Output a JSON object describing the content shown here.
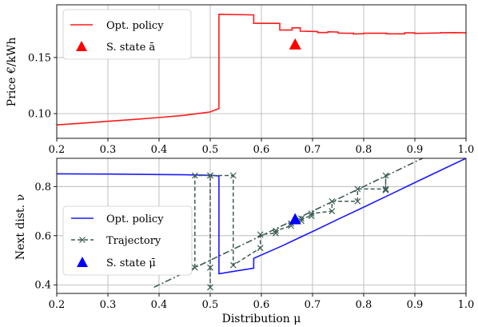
{
  "chart_data": [
    {
      "type": "line",
      "ylabel": "Price €/kWh",
      "xlim": [
        0.2,
        1.0
      ],
      "ylim": [
        0.078,
        0.197
      ],
      "xticks": [
        "0.2",
        "0.3",
        "0.4",
        "0.5",
        "0.6",
        "0.7",
        "0.8",
        "0.9",
        "1.0"
      ],
      "yticks": [
        "0.10",
        "0.15"
      ],
      "grid": true,
      "legend": {
        "placement": "top-left",
        "entries": [
          "Opt. policy",
          "S. state ā"
        ]
      },
      "colors": {
        "policy": "#ff1a1a",
        "steady": "#ff0000"
      },
      "series": [
        {
          "name": "Opt. policy",
          "x": [
            0.2,
            0.25,
            0.3,
            0.35,
            0.4,
            0.45,
            0.5,
            0.517,
            0.517,
            0.585,
            0.585,
            0.636,
            0.636,
            0.66,
            0.66,
            0.676,
            0.676,
            0.71,
            0.71,
            0.73,
            0.73,
            0.75,
            0.75,
            0.78,
            0.78,
            0.8,
            0.8,
            0.845,
            0.845,
            0.88,
            0.88,
            0.9,
            0.9,
            0.95,
            0.95,
            0.98,
            1.0
          ],
          "y": [
            0.09,
            0.0915,
            0.0932,
            0.0948,
            0.0965,
            0.0985,
            0.1015,
            0.1045,
            0.1885,
            0.188,
            0.1805,
            0.1805,
            0.1745,
            0.1745,
            0.1765,
            0.1765,
            0.1735,
            0.1732,
            0.1723,
            0.1723,
            0.173,
            0.1727,
            0.1718,
            0.1716,
            0.171,
            0.1713,
            0.1716,
            0.1716,
            0.1711,
            0.1711,
            0.172,
            0.172,
            0.1715,
            0.1719,
            0.1721,
            0.1722,
            0.172
          ]
        },
        {
          "name": "S. state ā",
          "x": [
            0.666
          ],
          "y": [
            0.1615
          ]
        }
      ]
    },
    {
      "type": "line",
      "xlabel": "Distribution μ",
      "ylabel": "Next dist. ν",
      "xlim": [
        0.2,
        1.0
      ],
      "ylim": [
        0.365,
        0.915
      ],
      "xticks": [
        "0.2",
        "0.3",
        "0.4",
        "0.5",
        "0.6",
        "0.7",
        "0.8",
        "0.9",
        "1.0"
      ],
      "yticks": [
        "0.4",
        "0.6",
        "0.8"
      ],
      "grid": true,
      "legend": {
        "placement": "bottom-left",
        "entries": [
          "Opt. policy",
          "Trajectory",
          "S. state μ̄"
        ]
      },
      "colors": {
        "policy": "#1a1aff",
        "trajectory": "#3d5c55",
        "diagonal": "#3d5c55",
        "steady": "#0000ff"
      },
      "series": [
        {
          "name": "Opt. policy",
          "x": [
            0.2,
            0.3,
            0.4,
            0.45,
            0.5,
            0.517,
            0.517,
            0.555,
            0.585,
            0.585,
            0.64,
            0.66,
            0.7,
            0.75,
            0.8,
            0.85,
            0.9,
            0.95,
            1.0
          ],
          "y": [
            0.852,
            0.851,
            0.849,
            0.848,
            0.846,
            0.843,
            0.445,
            0.458,
            0.468,
            0.508,
            0.558,
            0.578,
            0.617,
            0.667,
            0.716,
            0.766,
            0.816,
            0.866,
            0.915
          ]
        },
        {
          "name": "Trajectory",
          "x": [
            0.47,
            0.47,
            0.5,
            0.5,
            0.5,
            0.5,
            0.545,
            0.545,
            0.598,
            0.598,
            0.628,
            0.628,
            0.658,
            0.658,
            0.678,
            0.678,
            0.698,
            0.698,
            0.738,
            0.738,
            0.788,
            0.788,
            0.843,
            0.843,
            0.843
          ],
          "y": [
            0.47,
            0.845,
            0.845,
            0.39,
            0.47,
            0.845,
            0.845,
            0.48,
            0.55,
            0.605,
            0.61,
            0.62,
            0.64,
            0.65,
            0.66,
            0.67,
            0.68,
            0.69,
            0.7,
            0.74,
            0.74,
            0.79,
            0.79,
            0.845,
            0.785
          ]
        },
        {
          "name": "diagonal",
          "x": [
            0.39,
            0.97
          ],
          "y": [
            0.39,
            0.97
          ]
        },
        {
          "name": "S. state μ̄",
          "x": [
            0.666
          ],
          "y": [
            0.666
          ]
        }
      ]
    }
  ]
}
